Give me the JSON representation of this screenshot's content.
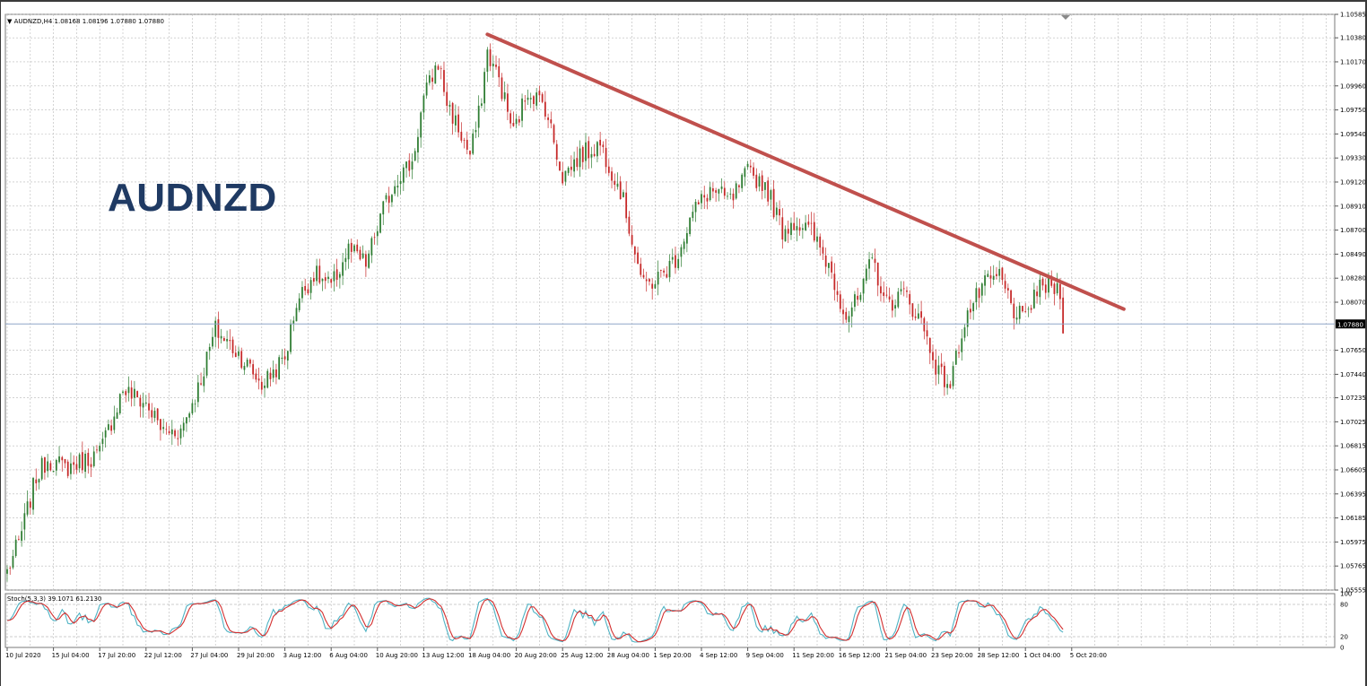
{
  "header": {
    "symbol_info": "AUDNZD,H4  1.08168 1.08196 1.07880 1.07880",
    "stoch_info": "Stoch(5,3,3) 39.1071 61.2130"
  },
  "overlay_label": "AUDNZD",
  "colors": {
    "bull": "#2e7d32",
    "bear": "#c62828",
    "trendline": "#c0504d",
    "grid": "#b8b8b8",
    "price_line": "#8fa6c8",
    "stoch_main": "#4fb3c4",
    "stoch_signal": "#d32f2f"
  },
  "chart_data": [
    {
      "type": "candlestick",
      "title": "AUDNZD,H4",
      "ylim": [
        1.05555,
        1.10585
      ],
      "ytick_values": [
        1.10585,
        1.1038,
        1.1017,
        1.0996,
        1.0975,
        1.0954,
        1.0933,
        1.0912,
        1.0891,
        1.087,
        1.0849,
        1.0828,
        1.0807,
        1.0765,
        1.0744,
        1.07235,
        1.07025,
        1.06815,
        1.06605,
        1.06395,
        1.06185,
        1.05975,
        1.05765,
        1.05555
      ],
      "ytick_labels": [
        "1.10585",
        "1.10380",
        "1.10170",
        "1.09960",
        "1.09750",
        "1.09540",
        "1.09330",
        "1.09120",
        "1.08910",
        "1.08700",
        "1.08490",
        "1.08280",
        "1.08070",
        "1.07650",
        "1.07440",
        "1.07235",
        "1.07025",
        "1.06815",
        "1.06605",
        "1.06395",
        "1.06185",
        "1.05975",
        "1.05765",
        "1.05555"
      ],
      "current_price": 1.0788,
      "current_price_label": "1.07880",
      "x_labels": [
        "10 Jul 2020",
        "15 Jul 04:00",
        "17 Jul 20:00",
        "22 Jul 12:00",
        "27 Jul 04:00",
        "29 Jul 20:00",
        "3 Aug 12:00",
        "6 Aug 04:00",
        "10 Aug 20:00",
        "13 Aug 12:00",
        "18 Aug 04:00",
        "20 Aug 20:00",
        "25 Aug 12:00",
        "28 Aug 04:00",
        "1 Sep 20:00",
        "4 Sep 12:00",
        "9 Sep 04:00",
        "11 Sep 20:00",
        "16 Sep 12:00",
        "21 Sep 04:00",
        "23 Sep 20:00",
        "28 Sep 12:00",
        "1 Oct 04:00",
        "5 Oct 20:00"
      ],
      "bars_per_label": 16,
      "candle_count": 366,
      "close_path": {
        "index": [
          0,
          4,
          10,
          14,
          20,
          26,
          32,
          40,
          48,
          54,
          60,
          66,
          72,
          80,
          88,
          96,
          100,
          106,
          112,
          118,
          124,
          130,
          135,
          140,
          144,
          149,
          152,
          156,
          160,
          163,
          166,
          170,
          175,
          180,
          186,
          192,
          198,
          205,
          212,
          220,
          226,
          231,
          237,
          243,
          250,
          256,
          262,
          268,
          272,
          278,
          284,
          290,
          295,
          299,
          304,
          310,
          316,
          322,
          326,
          331,
          337,
          343,
          348,
          352,
          355,
          360,
          364,
          365
        ],
        "close": [
          1.0572,
          1.0597,
          1.0654,
          1.067,
          1.0662,
          1.0668,
          1.0675,
          1.0731,
          1.0718,
          1.0694,
          1.0695,
          1.0732,
          1.0783,
          1.0762,
          1.0735,
          1.0758,
          1.0807,
          1.0832,
          1.082,
          1.0853,
          1.084,
          1.0888,
          1.0917,
          1.0929,
          1.0985,
          1.1017,
          1.0982,
          1.0958,
          1.0935,
          1.097,
          1.1025,
          1.1002,
          1.0955,
          1.0993,
          1.0978,
          1.0917,
          1.0935,
          1.0945,
          1.0905,
          1.082,
          1.083,
          1.0845,
          1.0885,
          1.0905,
          1.0895,
          1.092,
          1.091,
          1.087,
          1.0878,
          1.0868,
          1.084,
          1.0795,
          1.0812,
          1.0845,
          1.0805,
          1.0815,
          1.079,
          1.0745,
          1.0735,
          1.0792,
          1.082,
          1.083,
          1.08,
          1.079,
          1.0815,
          1.0822,
          1.0818,
          1.0788
        ]
      },
      "trendline": {
        "from": {
          "index": 166,
          "price": 1.1041
        },
        "to": {
          "index": 386,
          "price": 1.0801
        }
      }
    },
    {
      "type": "line",
      "title": "Stoch(5,3,3)",
      "ylim": [
        0,
        100
      ],
      "ytick_values": [
        100,
        80,
        20,
        0
      ],
      "ytick_labels": [
        "100",
        "80",
        "20",
        "0"
      ],
      "main_last": 39.1071,
      "signal_last": 61.213
    }
  ]
}
